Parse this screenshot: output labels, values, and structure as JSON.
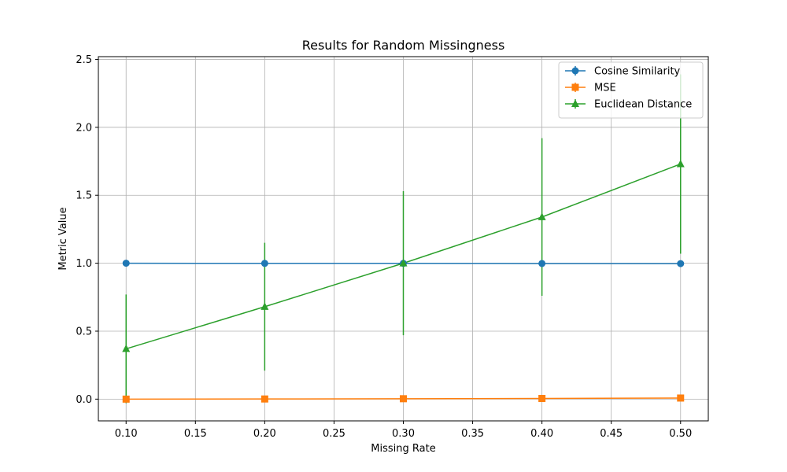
{
  "chart_data": {
    "type": "line",
    "title": "Results for Random Missingness",
    "xlabel": "Missing Rate",
    "ylabel": "Metric Value",
    "x": [
      0.1,
      0.2,
      0.3,
      0.4,
      0.5
    ],
    "xlim": [
      0.08,
      0.52
    ],
    "ylim": [
      -0.16,
      2.52
    ],
    "xticks": [
      0.1,
      0.15,
      0.2,
      0.25,
      0.3,
      0.35,
      0.4,
      0.45,
      0.5
    ],
    "xtick_labels": [
      "0.10",
      "0.15",
      "0.20",
      "0.25",
      "0.30",
      "0.35",
      "0.40",
      "0.45",
      "0.50"
    ],
    "yticks": [
      0.0,
      0.5,
      1.0,
      1.5,
      2.0,
      2.5
    ],
    "ytick_labels": [
      "0.0",
      "0.5",
      "1.0",
      "1.5",
      "2.0",
      "2.5"
    ],
    "grid": true,
    "legend_position": "top-right",
    "series": [
      {
        "name": "Cosine Similarity",
        "color": "#1f77b4",
        "marker": "circle",
        "values": [
          1.0,
          0.999,
          0.999,
          0.998,
          0.997
        ],
        "errors": [
          0.001,
          0.002,
          0.003,
          0.004,
          0.005
        ]
      },
      {
        "name": "MSE",
        "color": "#ff7f0e",
        "marker": "square",
        "values": [
          0.0,
          0.001,
          0.003,
          0.005,
          0.008
        ],
        "errors": [
          0.001,
          0.002,
          0.003,
          0.004,
          0.006
        ]
      },
      {
        "name": "Euclidean Distance",
        "color": "#2ca02c",
        "marker": "triangle",
        "values": [
          0.37,
          0.68,
          1.0,
          1.34,
          1.73
        ],
        "errors": [
          0.4,
          0.47,
          0.53,
          0.58,
          0.66
        ]
      }
    ]
  }
}
